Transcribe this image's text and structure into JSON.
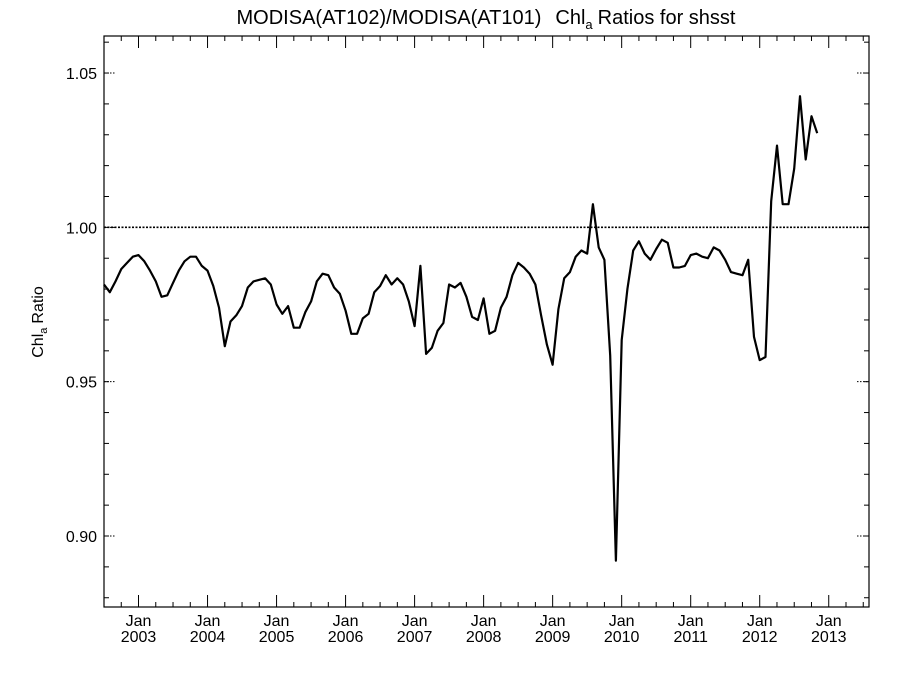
{
  "chart_data": {
    "type": "line",
    "title_main": "MODISA(AT102)/MODISA(AT101)",
    "title_var": "Chl",
    "title_sub": "a",
    "title_rest": "Ratios for shsst",
    "ylabel_var": "Chl",
    "ylabel_sub": "a",
    "ylabel_rest": "Ratio",
    "ylim": [
      0.877,
      1.062
    ],
    "xlim": [
      "2002-07",
      "2013-08"
    ],
    "grid": false,
    "reference_line": 1.0,
    "y_ticks": [
      {
        "value": 0.9,
        "label": "0.90"
      },
      {
        "value": 0.95,
        "label": "0.95"
      },
      {
        "value": 1.0,
        "label": "1.00"
      },
      {
        "value": 1.05,
        "label": "1.05"
      }
    ],
    "x_ticks": [
      {
        "date": "2003-01",
        "month": "Jan",
        "year": "2003"
      },
      {
        "date": "2004-01",
        "month": "Jan",
        "year": "2004"
      },
      {
        "date": "2005-01",
        "month": "Jan",
        "year": "2005"
      },
      {
        "date": "2006-01",
        "month": "Jan",
        "year": "2006"
      },
      {
        "date": "2007-01",
        "month": "Jan",
        "year": "2007"
      },
      {
        "date": "2008-01",
        "month": "Jan",
        "year": "2008"
      },
      {
        "date": "2009-01",
        "month": "Jan",
        "year": "2009"
      },
      {
        "date": "2010-01",
        "month": "Jan",
        "year": "2010"
      },
      {
        "date": "2011-01",
        "month": "Jan",
        "year": "2011"
      },
      {
        "date": "2012-01",
        "month": "Jan",
        "year": "2012"
      },
      {
        "date": "2013-01",
        "month": "Jan",
        "year": "2013"
      }
    ],
    "series": [
      {
        "color": "#000000",
        "points": [
          [
            "2002-07",
            0.9815
          ],
          [
            "2002-08",
            0.979
          ],
          [
            "2002-09",
            0.9825
          ],
          [
            "2002-10",
            0.9865
          ],
          [
            "2002-11",
            0.9885
          ],
          [
            "2002-12",
            0.9905
          ],
          [
            "2003-01",
            0.991
          ],
          [
            "2003-02",
            0.989
          ],
          [
            "2003-03",
            0.986
          ],
          [
            "2003-04",
            0.9825
          ],
          [
            "2003-05",
            0.9775
          ],
          [
            "2003-06",
            0.978
          ],
          [
            "2003-07",
            0.982
          ],
          [
            "2003-08",
            0.986
          ],
          [
            "2003-09",
            0.989
          ],
          [
            "2003-10",
            0.9905
          ],
          [
            "2003-11",
            0.9905
          ],
          [
            "2003-12",
            0.9875
          ],
          [
            "2004-01",
            0.986
          ],
          [
            "2004-02",
            0.981
          ],
          [
            "2004-03",
            0.974
          ],
          [
            "2004-04",
            0.9615
          ],
          [
            "2004-05",
            0.9695
          ],
          [
            "2004-06",
            0.9715
          ],
          [
            "2004-07",
            0.9745
          ],
          [
            "2004-08",
            0.9805
          ],
          [
            "2004-09",
            0.9825
          ],
          [
            "2004-10",
            0.983
          ],
          [
            "2004-11",
            0.9835
          ],
          [
            "2004-12",
            0.9815
          ],
          [
            "2005-01",
            0.975
          ],
          [
            "2005-02",
            0.972
          ],
          [
            "2005-03",
            0.9745
          ],
          [
            "2005-04",
            0.9675
          ],
          [
            "2005-05",
            0.9675
          ],
          [
            "2005-06",
            0.9725
          ],
          [
            "2005-07",
            0.976
          ],
          [
            "2005-08",
            0.9825
          ],
          [
            "2005-09",
            0.985
          ],
          [
            "2005-10",
            0.9845
          ],
          [
            "2005-11",
            0.9805
          ],
          [
            "2005-12",
            0.9785
          ],
          [
            "2006-01",
            0.973
          ],
          [
            "2006-02",
            0.9655
          ],
          [
            "2006-03",
            0.9655
          ],
          [
            "2006-04",
            0.9705
          ],
          [
            "2006-05",
            0.972
          ],
          [
            "2006-06",
            0.979
          ],
          [
            "2006-07",
            0.981
          ],
          [
            "2006-08",
            0.9845
          ],
          [
            "2006-09",
            0.9815
          ],
          [
            "2006-10",
            0.9835
          ],
          [
            "2006-11",
            0.9815
          ],
          [
            "2006-12",
            0.976
          ],
          [
            "2007-01",
            0.968
          ],
          [
            "2007-02",
            0.9875
          ],
          [
            "2007-03",
            0.959
          ],
          [
            "2007-04",
            0.961
          ],
          [
            "2007-05",
            0.9665
          ],
          [
            "2007-06",
            0.969
          ],
          [
            "2007-07",
            0.9815
          ],
          [
            "2007-08",
            0.9805
          ],
          [
            "2007-09",
            0.982
          ],
          [
            "2007-10",
            0.9775
          ],
          [
            "2007-11",
            0.971
          ],
          [
            "2007-12",
            0.97
          ],
          [
            "2008-01",
            0.977
          ],
          [
            "2008-02",
            0.9655
          ],
          [
            "2008-03",
            0.9665
          ],
          [
            "2008-04",
            0.974
          ],
          [
            "2008-05",
            0.9775
          ],
          [
            "2008-06",
            0.9845
          ],
          [
            "2008-07",
            0.9885
          ],
          [
            "2008-08",
            0.987
          ],
          [
            "2008-09",
            0.985
          ],
          [
            "2008-10",
            0.9815
          ],
          [
            "2008-11",
            0.9715
          ],
          [
            "2008-12",
            0.962
          ],
          [
            "2009-01",
            0.9555
          ],
          [
            "2009-02",
            0.9735
          ],
          [
            "2009-03",
            0.9835
          ],
          [
            "2009-04",
            0.9855
          ],
          [
            "2009-05",
            0.9905
          ],
          [
            "2009-06",
            0.9925
          ],
          [
            "2009-07",
            0.9915
          ],
          [
            "2009-08",
            1.0075
          ],
          [
            "2009-09",
            0.9935
          ],
          [
            "2009-10",
            0.9895
          ],
          [
            "2009-11",
            0.9585
          ],
          [
            "2009-12",
            0.892
          ],
          [
            "2010-01",
            0.9635
          ],
          [
            "2010-02",
            0.98
          ],
          [
            "2010-03",
            0.9925
          ],
          [
            "2010-04",
            0.9955
          ],
          [
            "2010-05",
            0.9915
          ],
          [
            "2010-06",
            0.9895
          ],
          [
            "2010-07",
            0.993
          ],
          [
            "2010-08",
            0.996
          ],
          [
            "2010-09",
            0.995
          ],
          [
            "2010-10",
            0.987
          ],
          [
            "2010-11",
            0.987
          ],
          [
            "2010-12",
            0.9875
          ],
          [
            "2011-01",
            0.991
          ],
          [
            "2011-02",
            0.9915
          ],
          [
            "2011-03",
            0.9905
          ],
          [
            "2011-04",
            0.99
          ],
          [
            "2011-05",
            0.9935
          ],
          [
            "2011-06",
            0.9925
          ],
          [
            "2011-07",
            0.9895
          ],
          [
            "2011-08",
            0.9855
          ],
          [
            "2011-09",
            0.985
          ],
          [
            "2011-10",
            0.9845
          ],
          [
            "2011-11",
            0.9895
          ],
          [
            "2011-12",
            0.9645
          ],
          [
            "2012-01",
            0.957
          ],
          [
            "2012-02",
            0.958
          ],
          [
            "2012-03",
            1.0085
          ],
          [
            "2012-04",
            1.0265
          ],
          [
            "2012-05",
            1.0075
          ],
          [
            "2012-06",
            1.0075
          ],
          [
            "2012-07",
            1.019
          ],
          [
            "2012-08",
            1.0425
          ],
          [
            "2012-09",
            1.022
          ],
          [
            "2012-10",
            1.036
          ],
          [
            "2012-11",
            1.0305
          ]
        ]
      }
    ]
  }
}
